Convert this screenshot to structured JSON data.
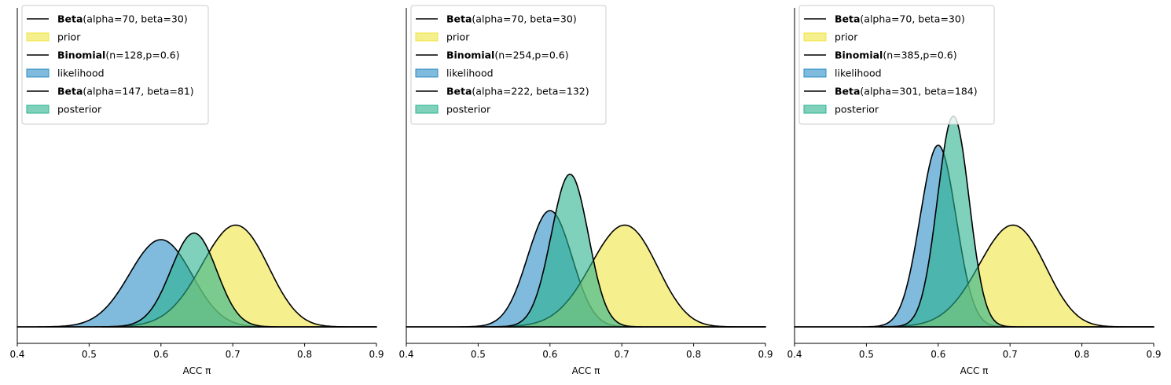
{
  "colors": {
    "prior": "#f0e442",
    "likelihood": "#2b8cc4",
    "posterior": "#2ab38f"
  },
  "chart_data": [
    {
      "type": "area",
      "xlabel": "ACC π",
      "xlim": [
        0.4,
        0.9
      ],
      "xticks": [
        "0.4",
        "0.5",
        "0.6",
        "0.7",
        "0.8",
        "0.9"
      ],
      "y_ticks_shown": false,
      "legend_position": "upper-left",
      "series": [
        {
          "role": "prior",
          "name": "prior",
          "legend_bold": "Beta",
          "legend_rest": "(alpha=70, beta=30)",
          "alpha": 70,
          "beta": 30,
          "x_from": 0.4,
          "x_to": 0.9,
          "peak": 0.7
        },
        {
          "role": "likelihood",
          "name": "likelihood",
          "legend_bold": "Binomial",
          "legend_rest": "(n=128,p=0.6)",
          "n": 128,
          "p": 0.6,
          "x_from": 0.4,
          "x_to": 0.9,
          "peak": 0.6
        },
        {
          "role": "posterior",
          "name": "posterior",
          "legend_bold": "Beta",
          "legend_rest": "(alpha=147, beta=81)",
          "alpha": 147,
          "beta": 81,
          "x_from": 0.518,
          "x_to": 0.9,
          "peak": 0.645
        }
      ]
    },
    {
      "type": "area",
      "xlabel": "ACC π",
      "xlim": [
        0.4,
        0.9
      ],
      "xticks": [
        "0.4",
        "0.5",
        "0.6",
        "0.7",
        "0.8",
        "0.9"
      ],
      "y_ticks_shown": false,
      "legend_position": "upper-left",
      "series": [
        {
          "role": "prior",
          "name": "prior",
          "legend_bold": "Beta",
          "legend_rest": "(alpha=70, beta=30)",
          "alpha": 70,
          "beta": 30,
          "x_from": 0.4,
          "x_to": 0.9,
          "peak": 0.7
        },
        {
          "role": "likelihood",
          "name": "likelihood",
          "legend_bold": "Binomial",
          "legend_rest": "(n=254,p=0.6)",
          "n": 254,
          "p": 0.6,
          "x_from": 0.4,
          "x_to": 0.9,
          "peak": 0.8
        },
        {
          "role": "posterior",
          "name": "posterior",
          "legend_bold": "Beta",
          "legend_rest": "(alpha=222, beta=132)",
          "alpha": 222,
          "beta": 132,
          "x_from": 0.518,
          "x_to": 0.9,
          "peak": 1.05
        }
      ]
    },
    {
      "type": "area",
      "xlabel": "ACC π",
      "xlim": [
        0.4,
        0.9
      ],
      "xticks": [
        "0.4",
        "0.5",
        "0.6",
        "0.7",
        "0.8",
        "0.9"
      ],
      "y_ticks_shown": false,
      "legend_position": "upper-left",
      "series": [
        {
          "role": "prior",
          "name": "prior",
          "legend_bold": "Beta",
          "legend_rest": "(alpha=70, beta=30)",
          "alpha": 70,
          "beta": 30,
          "x_from": 0.4,
          "x_to": 0.9,
          "peak": 0.7
        },
        {
          "role": "likelihood",
          "name": "likelihood",
          "legend_bold": "Binomial",
          "legend_rest": "(n=385,p=0.6)",
          "n": 385,
          "p": 0.6,
          "x_from": 0.4,
          "x_to": 0.9,
          "peak": 1.25
        },
        {
          "role": "posterior",
          "name": "posterior",
          "legend_bold": "Beta",
          "legend_rest": "(alpha=301, beta=184)",
          "alpha": 301,
          "beta": 184,
          "x_from": 0.518,
          "x_to": 0.9,
          "peak": 1.45
        }
      ]
    }
  ]
}
